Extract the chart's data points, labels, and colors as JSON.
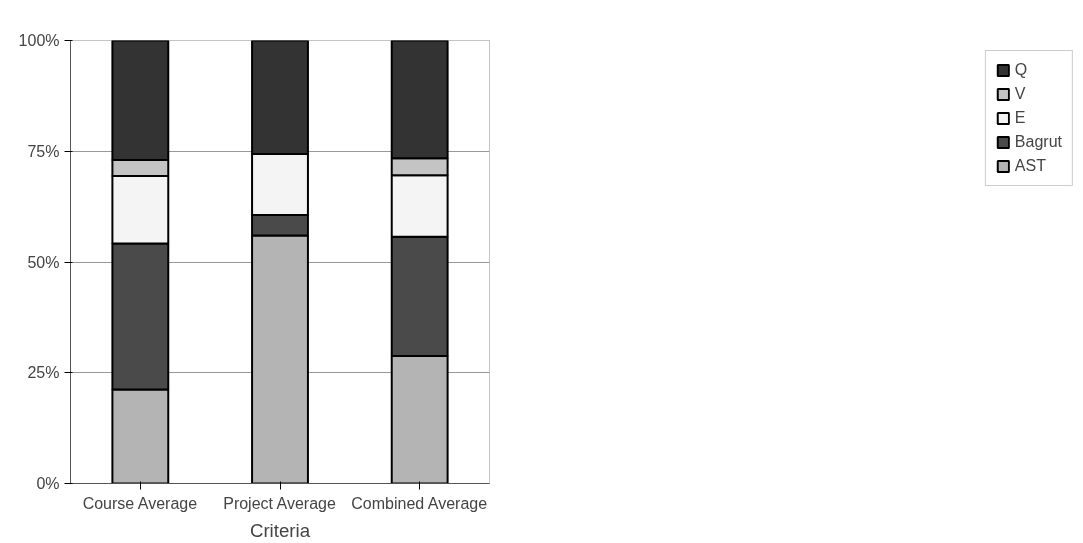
{
  "chart_data": {
    "type": "bar",
    "stacked": true,
    "xlabel": "Criteria",
    "categories": [
      "Course Average",
      "Project Average",
      "Combined Average"
    ],
    "series": [
      {
        "name": "AST",
        "color": "#b4b4b4",
        "values": [
          21.2,
          56.0,
          28.8
        ]
      },
      {
        "name": "Bagrut",
        "color": "#4a4a4a",
        "values": [
          33.0,
          4.6,
          26.9
        ]
      },
      {
        "name": "E",
        "color": "#f4f4f4",
        "values": [
          15.2,
          13.8,
          13.9
        ]
      },
      {
        "name": "V",
        "color": "#c4c4c4",
        "values": [
          3.6,
          0,
          3.8
        ]
      },
      {
        "name": "Q",
        "color": "#333333",
        "values": [
          27.0,
          25.6,
          26.6
        ]
      }
    ],
    "ylim": [
      0,
      100
    ],
    "yticks": [
      {
        "value": 0,
        "label": "0%"
      },
      {
        "value": 25,
        "label": "25%"
      },
      {
        "value": 50,
        "label": "50%"
      },
      {
        "value": 75,
        "label": "75%"
      },
      {
        "value": 100,
        "label": "100%"
      }
    ],
    "grid": "y",
    "legend": "right"
  }
}
